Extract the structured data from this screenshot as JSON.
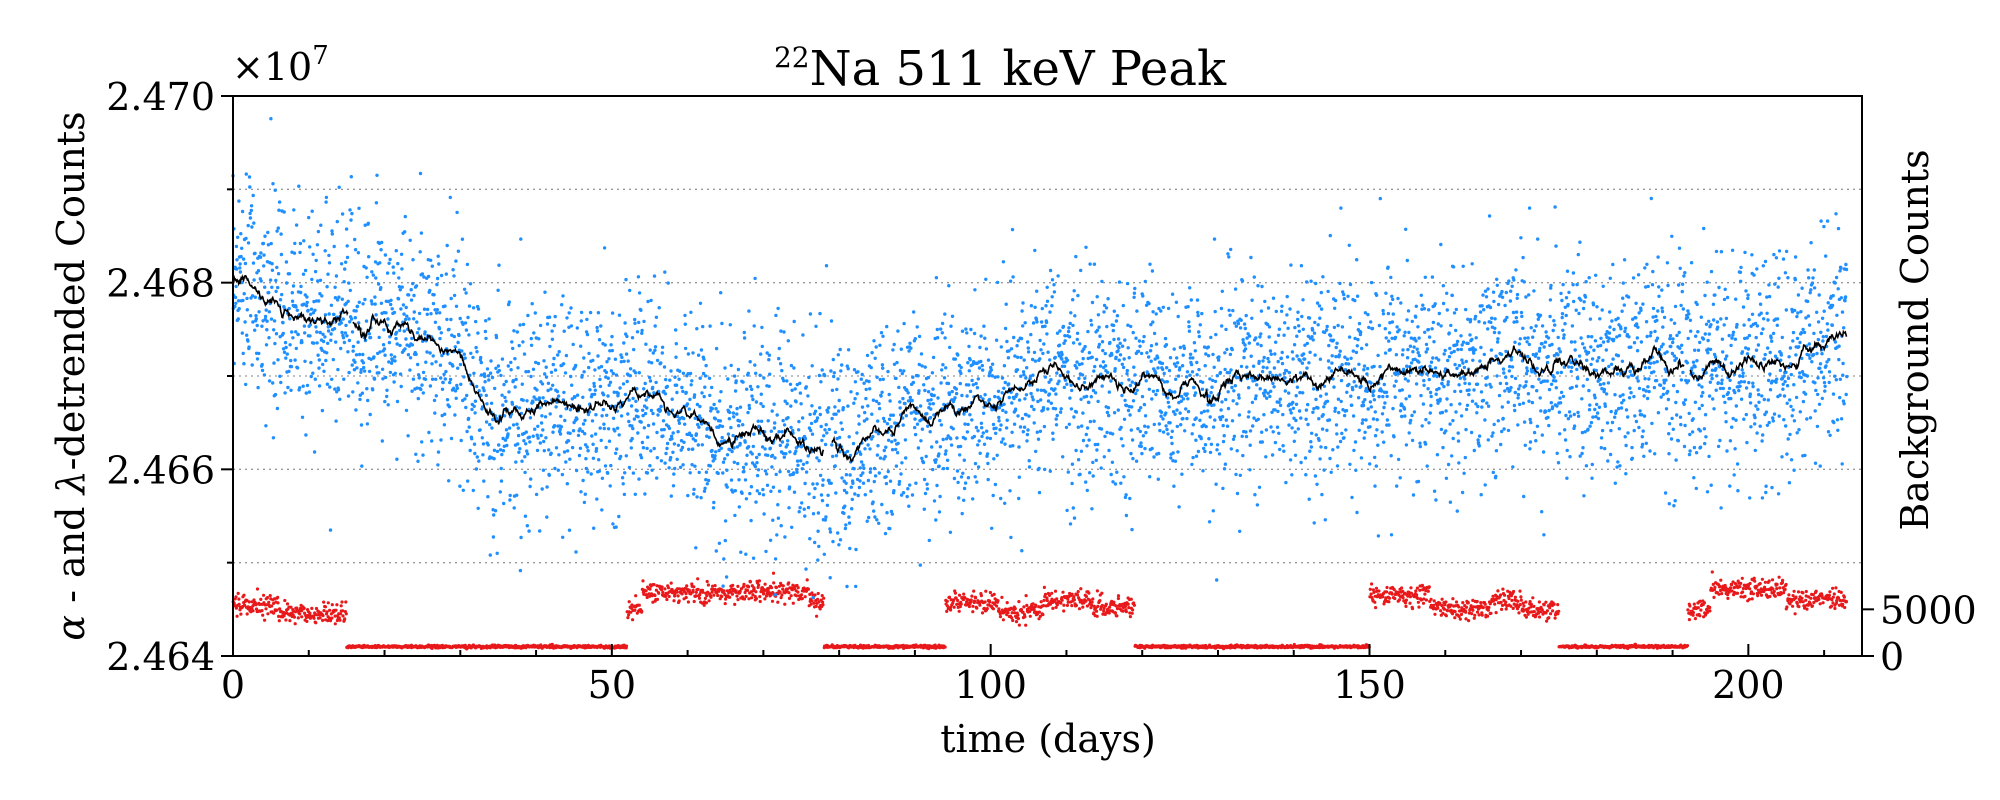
{
  "chart_data": {
    "type": "scatter",
    "title_sup": "22",
    "title_text": "Na 511 keV Peak",
    "xlabel": "time (days)",
    "ylabel_left_alpha": "α",
    "ylabel_left_mid": " - and ",
    "ylabel_left_lambda": "λ",
    "ylabel_left_end": "-detrended Counts",
    "ylabel_right": "Background Counts",
    "y_offset_base": "×10",
    "y_offset_exp": "7",
    "xlim": [
      0,
      215
    ],
    "ylim_left": [
      2.464,
      2.47
    ],
    "ylim_right": [
      0,
      60000
    ],
    "x_ticks": [
      0,
      50,
      100,
      150,
      200
    ],
    "x_tick_labels": [
      "0",
      "50",
      "100",
      "150",
      "200"
    ],
    "y_left_ticks": [
      2.464,
      2.466,
      2.468,
      2.47
    ],
    "y_left_tick_labels": [
      "2.464",
      "2.466",
      "2.468",
      "2.470"
    ],
    "y_right_ticks": [
      0,
      5000
    ],
    "y_right_tick_labels": [
      "0",
      "5000"
    ],
    "y_left_gridlines": [
      2.465,
      2.466,
      2.467,
      2.468,
      2.469
    ],
    "series": [
      {
        "name": "detrended counts",
        "kind": "scatter",
        "color": "#1f8fff",
        "trend_knots_x": [
          0,
          5,
          15,
          20,
          25,
          30,
          35,
          45,
          55,
          65,
          75,
          80,
          90,
          100,
          110,
          130,
          150,
          170,
          190,
          205,
          213
        ],
        "trend_knots_y": [
          2.4682,
          2.4677,
          2.4676,
          2.4676,
          2.4674,
          2.4671,
          2.4666,
          2.4667,
          2.4668,
          2.4664,
          2.4663,
          2.4662,
          2.4666,
          2.4668,
          2.467,
          2.4669,
          2.467,
          2.4671,
          2.4671,
          2.4672,
          2.4674
        ],
        "scatter_sigma": 0.00058,
        "n_points": 5200
      },
      {
        "name": "moving average",
        "kind": "line",
        "color": "#000000",
        "gaps": [
          [
            15.2,
            15.8
          ],
          [
            78,
            79
          ],
          [
            191.5,
            192.3
          ]
        ]
      },
      {
        "name": "background counts",
        "kind": "scatter",
        "color": "#e8191b",
        "axis": "right",
        "segments": [
          {
            "x": [
              0,
              6
            ],
            "y": 5500
          },
          {
            "x": [
              6,
              15
            ],
            "y": 4500
          },
          {
            "x": [
              15,
              52
            ],
            "y": 1000
          },
          {
            "x": [
              52,
              54
            ],
            "y": 5000
          },
          {
            "x": [
              54,
              58
            ],
            "y": 7000
          },
          {
            "x": [
              58,
              76
            ],
            "y": 6800
          },
          {
            "x": [
              76,
              78
            ],
            "y": 6000
          },
          {
            "x": [
              78,
              94
            ],
            "y": 1000
          },
          {
            "x": [
              94,
              101
            ],
            "y": 5800
          },
          {
            "x": [
              101,
              107
            ],
            "y": 4800
          },
          {
            "x": [
              107,
              113
            ],
            "y": 6000
          },
          {
            "x": [
              113,
              119
            ],
            "y": 5300
          },
          {
            "x": [
              119,
              150
            ],
            "y": 1000
          },
          {
            "x": [
              150,
              158
            ],
            "y": 6500
          },
          {
            "x": [
              158,
              166
            ],
            "y": 5200
          },
          {
            "x": [
              166,
              170
            ],
            "y": 6000
          },
          {
            "x": [
              170,
              175
            ],
            "y": 5000
          },
          {
            "x": [
              175,
              192
            ],
            "y": 1000
          },
          {
            "x": [
              192,
              195
            ],
            "y": 5000
          },
          {
            "x": [
              195,
              205
            ],
            "y": 7200
          },
          {
            "x": [
              205,
              213
            ],
            "y": 6000
          }
        ]
      }
    ]
  }
}
